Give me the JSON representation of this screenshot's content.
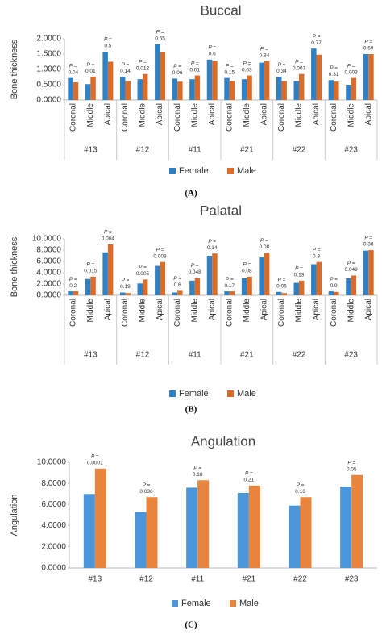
{
  "chart_data": [
    {
      "type": "bar",
      "title": "Buccal",
      "y_label": "Bone thickness",
      "caption": "(A)",
      "categories": [
        "Coronal",
        "Middle",
        "Apical",
        "Coronal",
        "Middle",
        "Apical",
        "Coronal",
        "Middle",
        "Apical",
        "Coronal",
        "Middle",
        "Apical",
        "Coronal",
        "Middle",
        "Apical",
        "Coronal",
        "Middle",
        "Apical"
      ],
      "groups": [
        "#13",
        "#12",
        "#11",
        "#21",
        "#22",
        "#23"
      ],
      "series": [
        {
          "name": "Female",
          "color": "#2f80c4",
          "values": [
            0.72,
            0.52,
            1.58,
            0.75,
            0.68,
            1.82,
            0.7,
            0.68,
            1.32,
            0.72,
            0.68,
            1.22,
            0.75,
            0.62,
            1.68,
            0.65,
            0.5,
            1.5
          ]
        },
        {
          "name": "Male",
          "color": "#d96c28",
          "values": [
            0.58,
            0.75,
            1.25,
            0.62,
            0.85,
            1.58,
            0.6,
            0.8,
            1.28,
            0.62,
            0.8,
            1.27,
            0.62,
            0.85,
            1.48,
            0.6,
            0.72,
            1.5
          ]
        }
      ],
      "p_prefix": "P =",
      "p_values": [
        0.04,
        0.01,
        0.5,
        0.14,
        0.012,
        0.65,
        0.06,
        0.01,
        0.6,
        0.15,
        0.03,
        0.84,
        0.34,
        0.007,
        0.77,
        0.31,
        0.003,
        0.69
      ],
      "ylim": [
        0,
        2
      ],
      "yticks": [
        {
          "value": 0,
          "label": "0.0000"
        },
        {
          "value": 0.5,
          "label": "0.5000"
        },
        {
          "value": 1,
          "label": "1.0000"
        },
        {
          "value": 1.5,
          "label": "1.5000"
        },
        {
          "value": 2,
          "label": "2.0000"
        }
      ],
      "legend": "bottom"
    },
    {
      "type": "bar",
      "title": "Palatal",
      "y_label": "Bone thickness",
      "caption": "(B)",
      "categories": [
        "Coronal",
        "Middle",
        "Apical",
        "Coronal",
        "Middle",
        "Apical",
        "Coronal",
        "Middle",
        "Apical",
        "Coronal",
        "Middle",
        "Apical",
        "Coronal",
        "Middle",
        "Apical",
        "Coronal",
        "Middle",
        "Apical"
      ],
      "groups": [
        "#13",
        "#12",
        "#11",
        "#21",
        "#22",
        "#23"
      ],
      "series": [
        {
          "name": "Female",
          "color": "#2f80c4",
          "values": [
            0.7,
            2.9,
            7.6,
            0.5,
            2.1,
            5.2,
            0.5,
            2.6,
            7.0,
            0.7,
            3.0,
            6.7,
            0.6,
            2.2,
            5.5,
            0.7,
            3.0,
            7.9
          ]
        },
        {
          "name": "Male",
          "color": "#d96c28",
          "values": [
            0.7,
            3.3,
            9.0,
            0.4,
            2.8,
            5.9,
            0.8,
            3.1,
            7.4,
            0.7,
            3.3,
            7.5,
            0.4,
            2.6,
            5.9,
            0.6,
            3.5,
            8.0
          ]
        }
      ],
      "p_prefix": "P =",
      "p_values": [
        0.2,
        0.015,
        0.004,
        0.19,
        0.005,
        0.008,
        0.6,
        0.048,
        0.14,
        0.17,
        0.08,
        0.08,
        0.06,
        0.13,
        0.3,
        0.9,
        0.049,
        0.38
      ],
      "ylim": [
        0,
        10
      ],
      "yticks": [
        {
          "value": 0,
          "label": "0.0000"
        },
        {
          "value": 2,
          "label": "2.0000"
        },
        {
          "value": 4,
          "label": "4.0000"
        },
        {
          "value": 6,
          "label": "6.0000"
        },
        {
          "value": 8,
          "label": "8.0000"
        },
        {
          "value": 10,
          "label": "10.0000"
        }
      ],
      "legend": "bottom"
    },
    {
      "type": "bar",
      "title": "Angulation",
      "y_label": "Angulation",
      "caption": "(C)",
      "categories": [
        "#13",
        "#12",
        "#11",
        "#21",
        "#22",
        "#23"
      ],
      "series": [
        {
          "name": "Female",
          "color": "#4a96d8",
          "values": [
            7.0,
            5.3,
            7.6,
            7.1,
            5.9,
            7.7
          ]
        },
        {
          "name": "Male",
          "color": "#e8843e",
          "values": [
            9.4,
            6.7,
            8.3,
            7.8,
            6.7,
            8.8
          ]
        }
      ],
      "p_prefix": "P =",
      "p_values": [
        0.0001,
        0.036,
        0.18,
        0.21,
        0.16,
        0.05
      ],
      "ylim": [
        0,
        10
      ],
      "yticks": [
        {
          "value": 0,
          "label": "0.0000"
        },
        {
          "value": 2,
          "label": "2.0000"
        },
        {
          "value": 4,
          "label": "4.0000"
        },
        {
          "value": 6,
          "label": "6.0000"
        },
        {
          "value": 8,
          "label": "8.0000"
        },
        {
          "value": 10,
          "label": "10.0000"
        }
      ],
      "legend": "bottom"
    }
  ]
}
